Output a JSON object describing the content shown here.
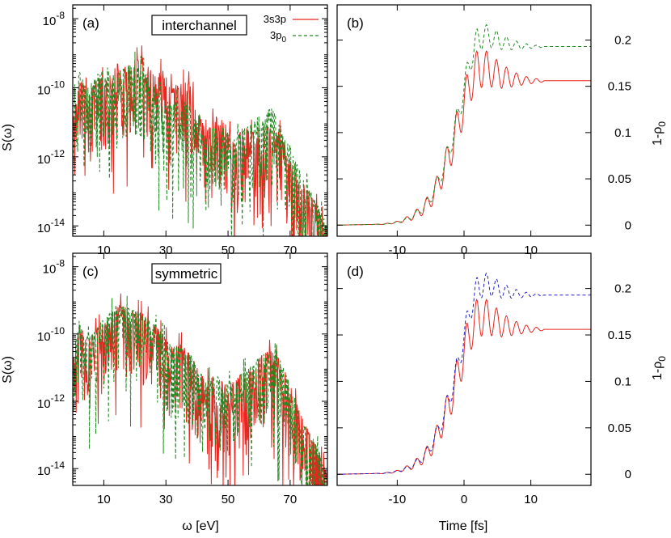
{
  "figure": {
    "y_axis_label_left": "S(ω)",
    "y_axis_label_right": "1-ρ",
    "y_axis_label_right_subscript": "0",
    "x_axis_label_left": "ω [eV]",
    "x_axis_label_right": "Time [fs]"
  },
  "legend": {
    "entries": [
      {
        "label": "3s3p",
        "color": "#e8251e",
        "dash": "solid"
      },
      {
        "label": "3p",
        "sub": "0",
        "color": "#1f8a1f",
        "dash": "dashed"
      }
    ]
  },
  "colors": {
    "red": "#e8251e",
    "green": "#1f8a1f",
    "blue": "#2222cc"
  },
  "chart_data": [
    {
      "panel": "(a)",
      "type": "line",
      "box_label": "interchannel",
      "xlabel": "",
      "ylabel": "S(ω)",
      "y_scale": "log",
      "xlim": [
        0,
        82
      ],
      "ylim_exp": [
        -14.3,
        -7.6
      ],
      "x_ticks": [
        10,
        30,
        50,
        70
      ],
      "y_ticks": [
        {
          "exp": -8,
          "label": "10",
          "sup": "-8"
        },
        {
          "exp": -10,
          "label": "10",
          "sup": "-10"
        },
        {
          "exp": -12,
          "label": "10",
          "sup": "-12"
        },
        {
          "exp": -14,
          "label": "10",
          "sup": "-14"
        }
      ],
      "series": [
        {
          "name": "3s3p",
          "color": "#e8251e",
          "dash": "solid",
          "envelope_x": [
            0,
            2,
            5,
            8,
            11,
            14,
            17,
            20,
            23,
            26,
            29,
            32,
            35,
            38,
            40,
            43,
            46,
            49,
            52,
            55,
            58,
            61,
            64,
            67,
            70,
            73,
            76,
            79,
            82
          ],
          "envelope_logy": [
            -11,
            -9.6,
            -10.2,
            -9.7,
            -9.8,
            -9.3,
            -9.4,
            -9.2,
            -9.1,
            -9.6,
            -9.5,
            -10,
            -9.8,
            -9.9,
            -10.6,
            -11.3,
            -10.8,
            -11,
            -11.6,
            -11.1,
            -11.3,
            -11,
            -11.2,
            -11.3,
            -12.1,
            -12.6,
            -13,
            -13.5,
            -14.1
          ]
        },
        {
          "name": "3p0",
          "color": "#1f8a1f",
          "dash": "dashed",
          "envelope_x": [
            0,
            2,
            5,
            8,
            11,
            14,
            17,
            20,
            23,
            26,
            29,
            32,
            35,
            38,
            40,
            43,
            46,
            49,
            52,
            55,
            58,
            61,
            64,
            67,
            70,
            73,
            76,
            79,
            82
          ],
          "envelope_logy": [
            -10.6,
            -9.5,
            -10,
            -9.6,
            -9.4,
            -9.6,
            -9.4,
            -9.3,
            -9.5,
            -9.9,
            -10.3,
            -10.5,
            -10.3,
            -10.6,
            -11,
            -11.5,
            -11,
            -11.2,
            -11.5,
            -11.2,
            -11,
            -10.7,
            -10.6,
            -11,
            -11.7,
            -12.4,
            -12.9,
            -13.4,
            -14
          ]
        }
      ]
    },
    {
      "panel": "(b)",
      "type": "line",
      "xlabel": "",
      "ylabel": "1-ρ0",
      "xlim": [
        -19,
        19
      ],
      "ylim": [
        -0.012,
        0.238
      ],
      "x_ticks": [
        -10,
        0,
        10
      ],
      "y_ticks": [
        0,
        0.05,
        0.1,
        0.15,
        0.2
      ],
      "series": [
        {
          "name": "3s3p",
          "color": "#e8251e",
          "dash": "solid",
          "x": [
            -19,
            -12,
            -10,
            -8,
            -6,
            -5,
            -4,
            -3,
            -2,
            -1,
            0,
            1,
            2,
            3,
            4,
            5,
            6,
            8,
            10,
            19
          ],
          "y": [
            0,
            0.001,
            0.003,
            0.008,
            0.018,
            0.028,
            0.042,
            0.06,
            0.08,
            0.105,
            0.132,
            0.155,
            0.168,
            0.17,
            0.167,
            0.163,
            0.16,
            0.157,
            0.156,
            0.156
          ]
        },
        {
          "name": "3p0",
          "color": "#1f8a1f",
          "dash": "dashed",
          "x": [
            -19,
            -12,
            -10,
            -8,
            -6,
            -5,
            -4,
            -3,
            -2,
            -1,
            0,
            1,
            2,
            3,
            4,
            5,
            6,
            8,
            10,
            19
          ],
          "y": [
            0,
            0.001,
            0.003,
            0.008,
            0.019,
            0.03,
            0.045,
            0.064,
            0.087,
            0.115,
            0.148,
            0.18,
            0.2,
            0.205,
            0.203,
            0.2,
            0.197,
            0.194,
            0.193,
            0.193
          ]
        }
      ]
    },
    {
      "panel": "(c)",
      "type": "line",
      "box_label": "symmetric",
      "xlabel": "ω [eV]",
      "ylabel": "S(ω)",
      "y_scale": "log",
      "xlim": [
        0,
        82
      ],
      "ylim_exp": [
        -14.5,
        -7.6
      ],
      "x_ticks": [
        10,
        30,
        50,
        70
      ],
      "y_ticks": [
        {
          "exp": -8,
          "label": "10",
          "sup": "-8"
        },
        {
          "exp": -10,
          "label": "10",
          "sup": "-10"
        },
        {
          "exp": -12,
          "label": "10",
          "sup": "-12"
        },
        {
          "exp": -14,
          "label": "10",
          "sup": "-14"
        }
      ],
      "series": [
        {
          "name": "3s3p",
          "color": "#e8251e",
          "dash": "solid",
          "envelope_x": [
            0,
            2,
            5,
            8,
            11,
            14,
            17,
            20,
            23,
            26,
            29,
            32,
            35,
            38,
            40,
            43,
            46,
            49,
            52,
            55,
            58,
            61,
            64,
            67,
            70,
            73,
            76,
            79,
            82
          ],
          "envelope_logy": [
            -10.8,
            -9.7,
            -10.2,
            -9.8,
            -9.6,
            -9.1,
            -9.2,
            -9.3,
            -9.4,
            -9.7,
            -10,
            -10.4,
            -10.3,
            -10.6,
            -11,
            -11.4,
            -11.2,
            -11.5,
            -11.4,
            -11.1,
            -10.9,
            -10.6,
            -10.5,
            -10.8,
            -11.5,
            -12.3,
            -12.9,
            -13.4,
            -14.2
          ]
        },
        {
          "name": "3p0",
          "color": "#1f8a1f",
          "dash": "dashed",
          "envelope_x": [
            0,
            2,
            5,
            8,
            11,
            14,
            17,
            20,
            23,
            26,
            29,
            32,
            35,
            38,
            40,
            43,
            46,
            49,
            52,
            55,
            58,
            61,
            64,
            67,
            70,
            73,
            76,
            79,
            82
          ],
          "envelope_logy": [
            -10.7,
            -9.6,
            -10.1,
            -9.7,
            -9.5,
            -9.1,
            -9.2,
            -9.3,
            -9.4,
            -9.7,
            -10,
            -10.4,
            -10.3,
            -10.6,
            -11,
            -11.4,
            -11.2,
            -11.5,
            -11.4,
            -11.1,
            -10.9,
            -10.6,
            -10.5,
            -10.8,
            -11.5,
            -12.3,
            -12.9,
            -13.4,
            -14.2
          ]
        }
      ]
    },
    {
      "panel": "(d)",
      "type": "line",
      "xlabel": "Time [fs]",
      "ylabel": "1-ρ0",
      "xlim": [
        -19,
        19
      ],
      "ylim": [
        -0.012,
        0.238
      ],
      "x_ticks": [
        -10,
        0,
        10
      ],
      "y_ticks": [
        0,
        0.05,
        0.1,
        0.15,
        0.2
      ],
      "series": [
        {
          "name": "3s3p",
          "color": "#e8251e",
          "dash": "solid",
          "x": [
            -19,
            -12,
            -10,
            -8,
            -6,
            -5,
            -4,
            -3,
            -2,
            -1,
            0,
            1,
            2,
            3,
            4,
            5,
            6,
            8,
            10,
            19
          ],
          "y": [
            0,
            0.001,
            0.003,
            0.008,
            0.018,
            0.028,
            0.042,
            0.06,
            0.08,
            0.105,
            0.132,
            0.155,
            0.168,
            0.17,
            0.167,
            0.163,
            0.16,
            0.157,
            0.156,
            0.156
          ]
        },
        {
          "name": "3p0",
          "color": "#2222cc",
          "dash": "dashed",
          "x": [
            -19,
            -12,
            -10,
            -8,
            -6,
            -5,
            -4,
            -3,
            -2,
            -1,
            0,
            1,
            2,
            3,
            4,
            5,
            6,
            8,
            10,
            19
          ],
          "y": [
            0,
            0.001,
            0.003,
            0.008,
            0.019,
            0.03,
            0.045,
            0.064,
            0.087,
            0.115,
            0.148,
            0.18,
            0.2,
            0.205,
            0.203,
            0.2,
            0.197,
            0.194,
            0.193,
            0.193
          ]
        }
      ]
    }
  ]
}
